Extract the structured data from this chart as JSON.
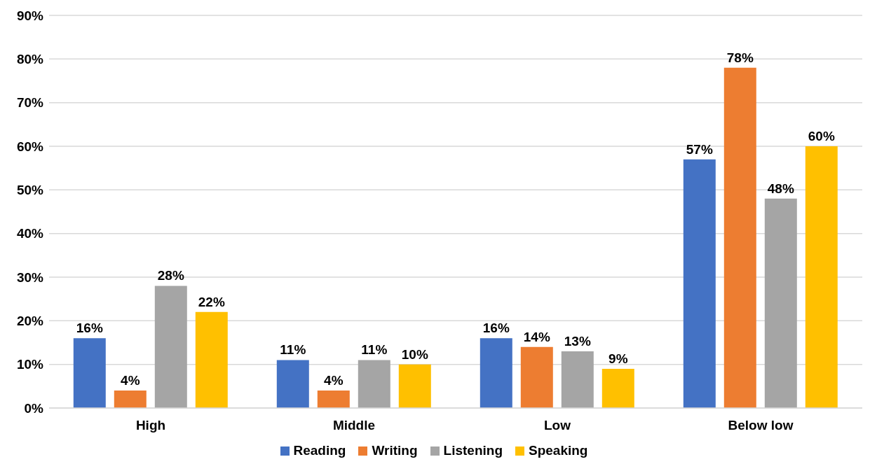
{
  "chart_data": {
    "type": "bar",
    "categories": [
      "High",
      "Middle",
      "Low",
      "Below low"
    ],
    "series": [
      {
        "name": "Reading",
        "color": "#4472c4",
        "values": [
          16,
          11,
          16,
          57
        ],
        "value_labels": [
          "16%",
          "11%",
          "16%",
          "57%"
        ]
      },
      {
        "name": "Writing",
        "color": "#ed7d31",
        "values": [
          4,
          4,
          14,
          78
        ],
        "value_labels": [
          "4%",
          "4%",
          "14%",
          "78%"
        ]
      },
      {
        "name": "Listening",
        "color": "#a5a5a5",
        "values": [
          28,
          11,
          13,
          48
        ],
        "value_labels": [
          "28%",
          "11%",
          "13%",
          "48%"
        ]
      },
      {
        "name": "Speaking",
        "color": "#ffc000",
        "values": [
          22,
          10,
          9,
          60
        ],
        "value_labels": [
          "22%",
          "10%",
          "9%",
          "60%"
        ]
      }
    ],
    "ylim": [
      0,
      90
    ],
    "yticks": [
      {
        "value": 0,
        "label": "0%"
      },
      {
        "value": 10,
        "label": "10%"
      },
      {
        "value": 20,
        "label": "20%"
      },
      {
        "value": 30,
        "label": "30%"
      },
      {
        "value": 40,
        "label": "40%"
      },
      {
        "value": 50,
        "label": "50%"
      },
      {
        "value": 60,
        "label": "60%"
      },
      {
        "value": 70,
        "label": "70%"
      },
      {
        "value": 80,
        "label": "80%"
      },
      {
        "value": 90,
        "label": "90%"
      }
    ],
    "grid": "y",
    "legend": "bottom"
  }
}
